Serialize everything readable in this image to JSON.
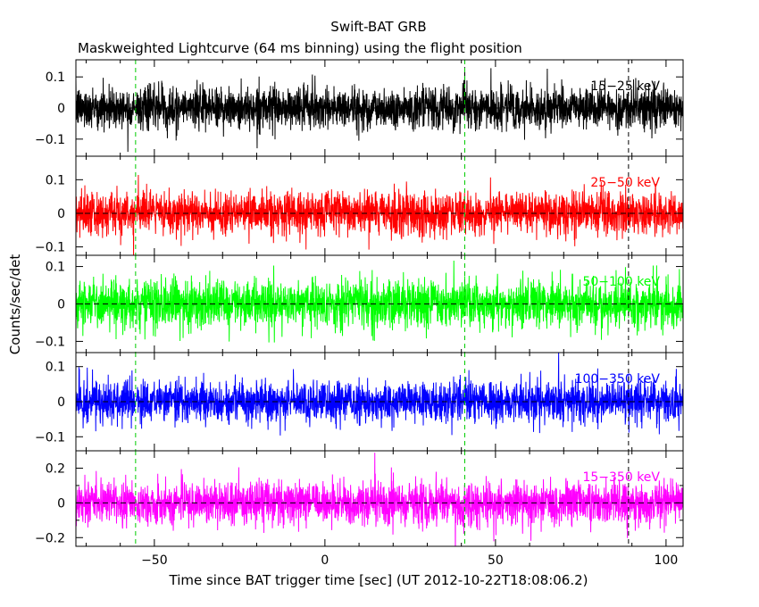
{
  "chart_data": {
    "type": "line",
    "title": "Swift-BAT GRB",
    "subtitle": "Maskweighted Lightcurve (64 ms binning) using the flight position",
    "xlabel": "Time since BAT trigger time [sec] (UT 2012-10-22T18:08:06.2)",
    "ylabel": "Counts/sec/det",
    "xlim": [
      -73,
      105
    ],
    "x_ticks": [
      -50,
      0,
      50,
      100
    ],
    "x_tick_labels": [
      "−50",
      "0",
      "50",
      "100"
    ],
    "bin_seconds": 0.064,
    "zero_line": "dashed",
    "vertical_markers": [
      {
        "x": -55.5,
        "style": "dashed",
        "color": "#00cc00"
      },
      {
        "x": 41,
        "style": "dashed",
        "color": "#00cc00"
      },
      {
        "x": 89,
        "style": "dashed",
        "color": "#000000"
      }
    ],
    "panels": [
      {
        "name": "15-25 keV",
        "label": "15−25 keV",
        "color": "#000000",
        "ylim": [
          -0.155,
          0.155
        ],
        "y_ticks": [
          0.1,
          0,
          -0.1
        ],
        "y_tick_labels": [
          "0.1",
          "0",
          "−0.1"
        ],
        "noise_sigma": 0.048,
        "mean": 0.0
      },
      {
        "name": "25-50 keV",
        "label": "25−50 keV",
        "color": "#ff0000",
        "ylim": [
          -0.125,
          0.17
        ],
        "y_ticks": [
          0.1,
          0,
          -0.1
        ],
        "y_tick_labels": [
          "0.1",
          "0",
          "−0.1"
        ],
        "noise_sigma": 0.045,
        "mean": 0.0
      },
      {
        "name": "50-100 keV",
        "label": "50−100 keV",
        "color": "#00ff00",
        "ylim": [
          -0.13,
          0.13
        ],
        "y_ticks": [
          0.1,
          0,
          -0.1
        ],
        "y_tick_labels": [
          "0.1",
          "0",
          "−0.1"
        ],
        "noise_sigma": 0.046,
        "mean": 0.0
      },
      {
        "name": "100-350 keV",
        "label": "100−350 keV",
        "color": "#0000ff",
        "ylim": [
          -0.14,
          0.14
        ],
        "y_ticks": [
          0.1,
          0,
          -0.1
        ],
        "y_tick_labels": [
          "0.1",
          "0",
          "−0.1"
        ],
        "noise_sigma": 0.042,
        "mean": 0.0
      },
      {
        "name": "15-350 keV",
        "label": "15−350 keV",
        "color": "#ff00ff",
        "ylim": [
          -0.25,
          0.3
        ],
        "y_ticks": [
          0.2,
          0.1,
          0,
          -0.1,
          -0.2
        ],
        "y_tick_labels": [
          "0.2",
          "",
          "0",
          "",
          "−0.2"
        ],
        "noise_sigma": 0.085,
        "mean": 0.0
      }
    ]
  }
}
